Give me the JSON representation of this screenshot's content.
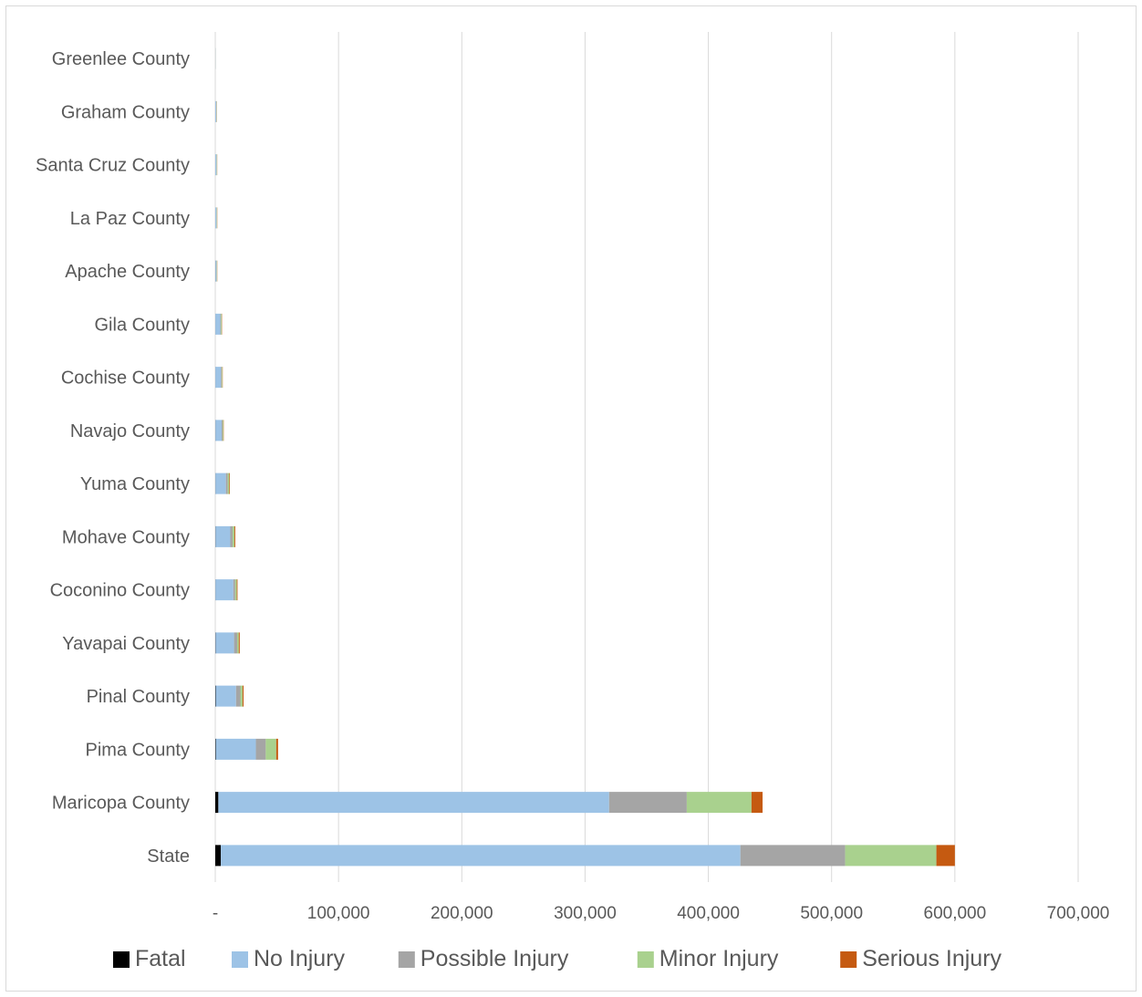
{
  "chart_data": {
    "type": "bar",
    "orientation": "horizontal",
    "stacked": true,
    "categories": [
      "State",
      "Maricopa County",
      "Pima County",
      "Pinal County",
      "Yavapai County",
      "Coconino County",
      "Mohave County",
      "Yuma County",
      "Navajo County",
      "Cochise County",
      "Gila County",
      "Apache County",
      "La Paz County",
      "Santa Cruz County",
      "Graham County",
      "Greenlee County"
    ],
    "series": [
      {
        "name": "Fatal",
        "color": "#000000",
        "values": [
          4500,
          2500,
          450,
          350,
          250,
          150,
          200,
          150,
          150,
          100,
          100,
          150,
          50,
          50,
          50,
          10
        ]
      },
      {
        "name": "No Injury",
        "color": "#9dc3e6",
        "values": [
          421500,
          317000,
          32500,
          16500,
          15000,
          14500,
          12000,
          8500,
          5000,
          4500,
          4000,
          800,
          900,
          900,
          700,
          150
        ]
      },
      {
        "name": "Possible Injury",
        "color": "#a5a5a5",
        "values": [
          85000,
          63000,
          8000,
          3500,
          2500,
          1500,
          1800,
          1500,
          800,
          700,
          600,
          300,
          300,
          300,
          250,
          50
        ]
      },
      {
        "name": "Minor Injury",
        "color": "#a9d18e",
        "values": [
          74000,
          52500,
          8500,
          1800,
          1300,
          1300,
          1500,
          1200,
          600,
          500,
          500,
          250,
          250,
          250,
          200,
          40
        ]
      },
      {
        "name": "Serious Injury",
        "color": "#c55a11",
        "values": [
          15000,
          9000,
          1500,
          800,
          800,
          600,
          700,
          500,
          300,
          250,
          250,
          150,
          150,
          100,
          100,
          20
        ]
      }
    ],
    "xlim": [
      0,
      700000
    ],
    "xticks": [
      0,
      100000,
      200000,
      300000,
      400000,
      500000,
      600000,
      700000
    ],
    "xtick_labels": [
      "-",
      "100,000",
      "200,000",
      "300,000",
      "400,000",
      "500,000",
      "600,000",
      "700,000"
    ],
    "title": "",
    "xlabel": "",
    "ylabel": "",
    "grid": "vertical",
    "legend_position": "bottom"
  }
}
